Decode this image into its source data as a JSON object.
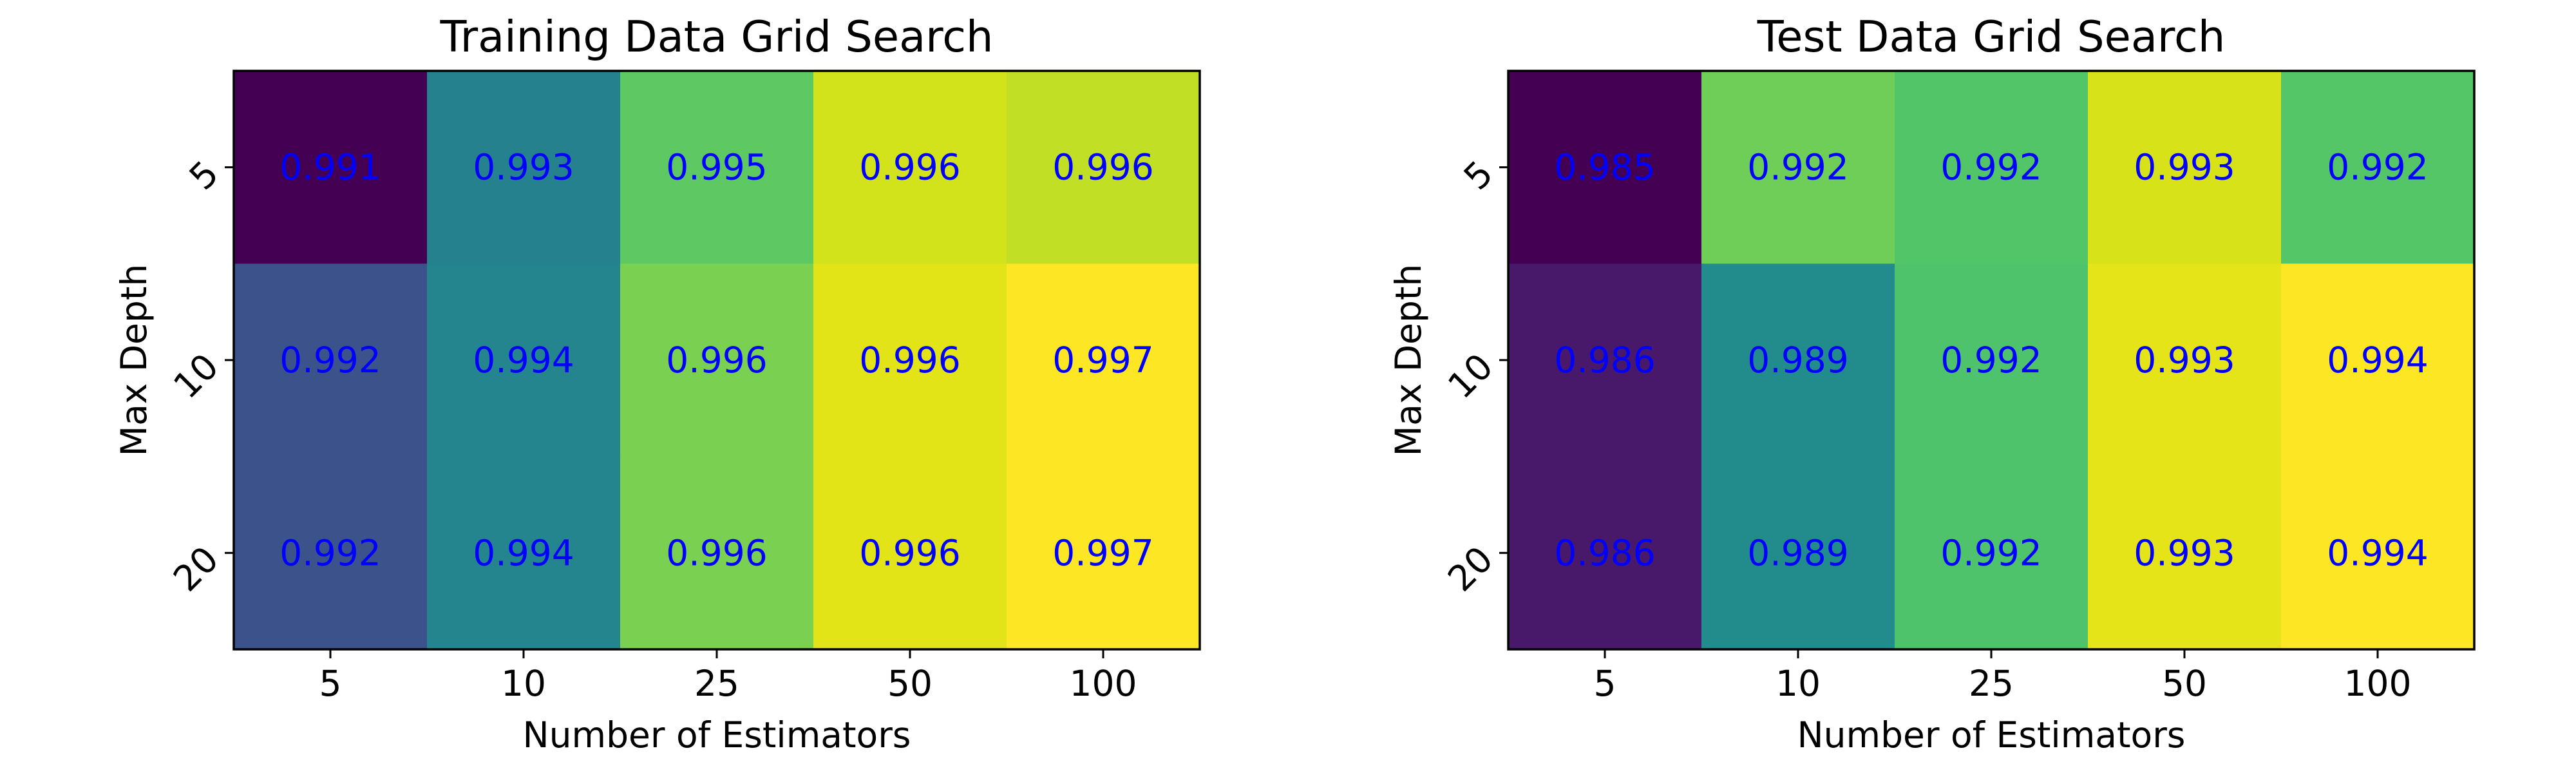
{
  "chart_data": [
    {
      "type": "heatmap",
      "title": "Training Data Grid Search",
      "xlabel": "Number of Estimators",
      "ylabel": "Max Depth",
      "x_categories": [
        "5",
        "10",
        "25",
        "50",
        "100"
      ],
      "y_categories": [
        "5",
        "10",
        "20"
      ],
      "values": [
        [
          0.991,
          0.993,
          0.995,
          0.996,
          0.996
        ],
        [
          0.992,
          0.994,
          0.996,
          0.996,
          0.997
        ],
        [
          0.992,
          0.994,
          0.996,
          0.996,
          0.997
        ]
      ],
      "value_labels": [
        [
          "0.991",
          "0.993",
          "0.995",
          "0.996",
          "0.996"
        ],
        [
          "0.992",
          "0.994",
          "0.996",
          "0.996",
          "0.997"
        ],
        [
          "0.992",
          "0.994",
          "0.996",
          "0.996",
          "0.997"
        ]
      ],
      "cell_colors": [
        [
          "#440154",
          "#26818e",
          "#5ec962",
          "#d2e21b",
          "#c0df25"
        ],
        [
          "#3b528b",
          "#25858e",
          "#7ad151",
          "#e2e418",
          "#fde725"
        ],
        [
          "#3b528b",
          "#25858e",
          "#7ad151",
          "#e2e418",
          "#fde725"
        ]
      ],
      "colormap": "viridis",
      "annotation_color": "#0000ff",
      "grid": false
    },
    {
      "type": "heatmap",
      "title": "Test Data Grid Search",
      "xlabel": "Number of Estimators",
      "ylabel": "Max Depth",
      "x_categories": [
        "5",
        "10",
        "25",
        "50",
        "100"
      ],
      "y_categories": [
        "5",
        "10",
        "20"
      ],
      "values": [
        [
          0.985,
          0.992,
          0.992,
          0.993,
          0.992
        ],
        [
          0.986,
          0.989,
          0.992,
          0.993,
          0.994
        ],
        [
          0.986,
          0.989,
          0.992,
          0.993,
          0.994
        ]
      ],
      "value_labels": [
        [
          "0.985",
          "0.992",
          "0.992",
          "0.993",
          "0.992"
        ],
        [
          "0.986",
          "0.989",
          "0.992",
          "0.993",
          "0.994"
        ],
        [
          "0.986",
          "0.989",
          "0.992",
          "0.993",
          "0.994"
        ]
      ],
      "cell_colors": [
        [
          "#440154",
          "#6ece58",
          "#52c569",
          "#d8e219",
          "#55c667"
        ],
        [
          "#48186a",
          "#228c8d",
          "#4ec36b",
          "#e5e419",
          "#fde725"
        ],
        [
          "#48186a",
          "#228c8d",
          "#4ec36b",
          "#e5e419",
          "#fde725"
        ]
      ],
      "colormap": "viridis",
      "annotation_color": "#0000ff",
      "grid": false
    }
  ]
}
